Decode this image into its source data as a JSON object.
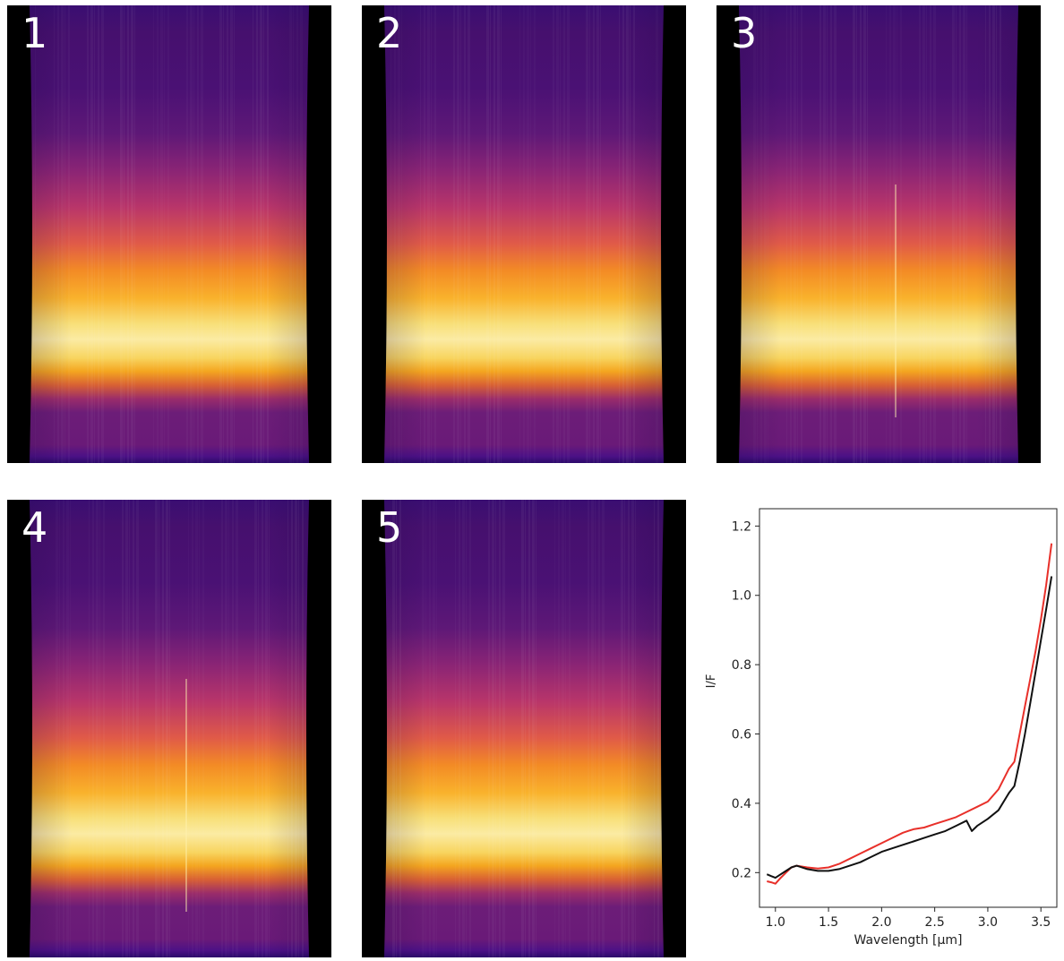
{
  "panels": [
    {
      "label": "1",
      "band_intensity": 1.0,
      "center_streak": false
    },
    {
      "label": "2",
      "band_intensity": 0.97,
      "center_streak": false
    },
    {
      "label": "3",
      "band_intensity": 0.96,
      "center_streak": true
    },
    {
      "label": "4",
      "band_intensity": 0.94,
      "center_streak": true
    },
    {
      "label": "5",
      "band_intensity": 0.95,
      "center_streak": false
    }
  ],
  "colormap": "inferno",
  "chart_data": {
    "type": "line",
    "xlabel": "Wavelength [µm]",
    "ylabel": "I/F",
    "xlim": [
      0.85,
      3.65
    ],
    "ylim": [
      0.1,
      1.25
    ],
    "xticks": [
      "1.0",
      "1.5",
      "2.0",
      "2.5",
      "3.0",
      "3.5"
    ],
    "yticks": [
      "0.2",
      "0.4",
      "0.6",
      "0.8",
      "1.0",
      "1.2"
    ],
    "xtick_values": [
      1.0,
      1.5,
      2.0,
      2.5,
      3.0,
      3.5
    ],
    "ytick_values": [
      0.2,
      0.4,
      0.6,
      0.8,
      1.0,
      1.2
    ],
    "grid": false,
    "legend": "none",
    "series": [
      {
        "color": "#e8302a",
        "x": [
          0.92,
          0.96,
          1.0,
          1.05,
          1.1,
          1.15,
          1.2,
          1.3,
          1.4,
          1.5,
          1.6,
          1.7,
          1.8,
          1.9,
          2.0,
          2.1,
          2.2,
          2.3,
          2.4,
          2.5,
          2.6,
          2.7,
          2.8,
          2.9,
          3.0,
          3.1,
          3.2,
          3.25,
          3.3,
          3.35,
          3.4,
          3.45,
          3.5,
          3.55,
          3.6
        ],
        "y": [
          0.175,
          0.172,
          0.168,
          0.185,
          0.2,
          0.215,
          0.22,
          0.215,
          0.212,
          0.215,
          0.225,
          0.24,
          0.255,
          0.27,
          0.285,
          0.3,
          0.315,
          0.325,
          0.33,
          0.34,
          0.35,
          0.36,
          0.375,
          0.39,
          0.405,
          0.44,
          0.5,
          0.52,
          0.6,
          0.68,
          0.76,
          0.84,
          0.93,
          1.03,
          1.15
        ]
      },
      {
        "color": "#111111",
        "x": [
          0.92,
          0.96,
          1.0,
          1.05,
          1.1,
          1.15,
          1.2,
          1.3,
          1.4,
          1.5,
          1.6,
          1.7,
          1.8,
          1.9,
          2.0,
          2.1,
          2.2,
          2.3,
          2.4,
          2.5,
          2.6,
          2.7,
          2.8,
          2.85,
          2.9,
          3.0,
          3.1,
          3.2,
          3.25,
          3.3,
          3.35,
          3.4,
          3.45,
          3.5,
          3.55,
          3.6
        ],
        "y": [
          0.195,
          0.19,
          0.185,
          0.195,
          0.205,
          0.215,
          0.22,
          0.21,
          0.205,
          0.205,
          0.21,
          0.22,
          0.23,
          0.245,
          0.26,
          0.27,
          0.28,
          0.29,
          0.3,
          0.31,
          0.32,
          0.335,
          0.35,
          0.32,
          0.335,
          0.355,
          0.38,
          0.43,
          0.45,
          0.52,
          0.6,
          0.69,
          0.78,
          0.87,
          0.96,
          1.055
        ]
      }
    ]
  }
}
